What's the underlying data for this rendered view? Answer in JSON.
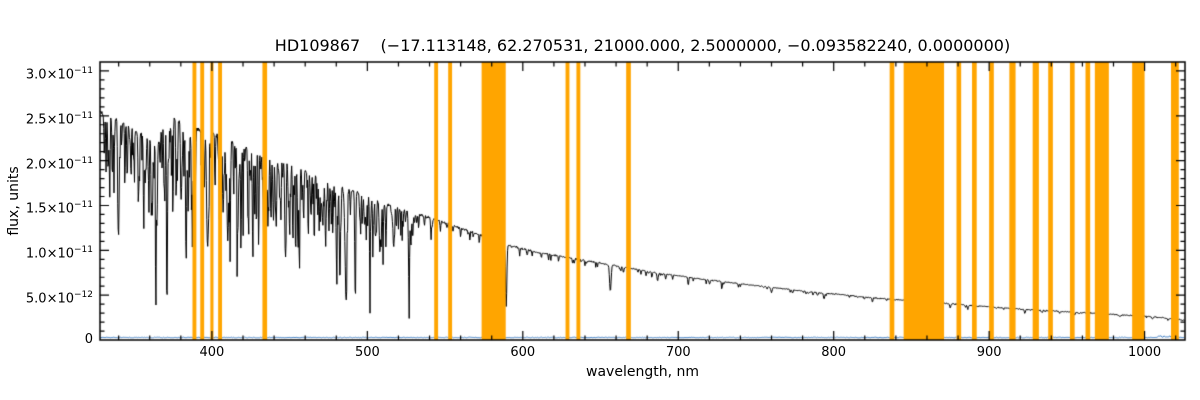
{
  "title": "HD109867    (−17.113148, 62.270531, 21000.000, 2.5000000, −0.093582240, 0.0000000)",
  "chart_data": {
    "type": "line",
    "title": "HD109867    (−17.113148, 62.270531, 21000.000, 2.5000000, −0.093582240, 0.0000000)",
    "xlabel": "wavelength, nm",
    "ylabel": "flux, units",
    "xlim": [
      328,
      1026
    ],
    "ylim_e11": [
      0,
      3.1
    ],
    "x_major_ticks": [
      400,
      500,
      600,
      700,
      800,
      900,
      1000
    ],
    "x_minor_step": 20,
    "y_major_ticks": [
      {
        "value_e11": 0.0,
        "label": "0"
      },
      {
        "value_e11": 0.5,
        "label": "5.0×10^−12"
      },
      {
        "value_e11": 1.0,
        "label": "1.0×10^−11"
      },
      {
        "value_e11": 1.5,
        "label": "1.5×10^−11"
      },
      {
        "value_e11": 2.0,
        "label": "2.0×10^−11"
      },
      {
        "value_e11": 2.5,
        "label": "2.5×10^−11"
      },
      {
        "value_e11": 3.0,
        "label": "3.0×10^−11"
      }
    ],
    "y_minor_step_e11": 0.1,
    "colors": {
      "spectrum": "#000000",
      "masks": "#FFA500",
      "error_line": "#4a86c8",
      "frame": "#000000",
      "background": "#ffffff"
    },
    "masked_bands_nm": [
      [
        387.5,
        390
      ],
      [
        392.5,
        395
      ],
      [
        399,
        401
      ],
      [
        404,
        406.5
      ],
      [
        432.5,
        435.5
      ],
      [
        543,
        545.5
      ],
      [
        552,
        554.5
      ],
      [
        573.5,
        589
      ],
      [
        627.5,
        630
      ],
      [
        634.5,
        637
      ],
      [
        666.5,
        669.5
      ],
      [
        836,
        839
      ],
      [
        845,
        871
      ],
      [
        879,
        882
      ],
      [
        889,
        892
      ],
      [
        900,
        903
      ],
      [
        913,
        917
      ],
      [
        928,
        932
      ],
      [
        938,
        941
      ],
      [
        952,
        955
      ],
      [
        962,
        965
      ],
      [
        968,
        977
      ],
      [
        992,
        1000
      ],
      [
        1017,
        1022
      ]
    ],
    "continuum_e11": [
      [
        328,
        2.56
      ],
      [
        336,
        2.49
      ],
      [
        344,
        2.42
      ],
      [
        352,
        2.33
      ],
      [
        358,
        2.26
      ],
      [
        363,
        2.2
      ],
      [
        366,
        2.25
      ],
      [
        369,
        2.47
      ],
      [
        372,
        2.52
      ],
      [
        376,
        2.47
      ],
      [
        382,
        2.42
      ],
      [
        390,
        2.37
      ],
      [
        400,
        2.31
      ],
      [
        410,
        2.24
      ],
      [
        420,
        2.17
      ],
      [
        430,
        2.1
      ],
      [
        440,
        2.03
      ],
      [
        450,
        1.96
      ],
      [
        460,
        1.89
      ],
      [
        470,
        1.82
      ],
      [
        480,
        1.74
      ],
      [
        490,
        1.67
      ],
      [
        500,
        1.6
      ],
      [
        510,
        1.53
      ],
      [
        520,
        1.47
      ],
      [
        530,
        1.42
      ],
      [
        540,
        1.37
      ],
      [
        550,
        1.31
      ],
      [
        560,
        1.25
      ],
      [
        570,
        1.19
      ],
      [
        580,
        1.13
      ],
      [
        590,
        1.07
      ],
      [
        600,
        1.02
      ],
      [
        610,
        0.98
      ],
      [
        620,
        0.95
      ],
      [
        630,
        0.92
      ],
      [
        640,
        0.89
      ],
      [
        650,
        0.86
      ],
      [
        660,
        0.83
      ],
      [
        670,
        0.8
      ],
      [
        680,
        0.77
      ],
      [
        690,
        0.74
      ],
      [
        700,
        0.72
      ],
      [
        715,
        0.68
      ],
      [
        730,
        0.65
      ],
      [
        745,
        0.62
      ],
      [
        760,
        0.59
      ],
      [
        775,
        0.56
      ],
      [
        790,
        0.53
      ],
      [
        805,
        0.51
      ],
      [
        820,
        0.48
      ],
      [
        835,
        0.46
      ],
      [
        850,
        0.44
      ],
      [
        865,
        0.42
      ],
      [
        880,
        0.4
      ],
      [
        895,
        0.38
      ],
      [
        910,
        0.36
      ],
      [
        925,
        0.34
      ],
      [
        940,
        0.33
      ],
      [
        955,
        0.31
      ],
      [
        970,
        0.3
      ],
      [
        985,
        0.28
      ],
      [
        1000,
        0.27
      ],
      [
        1012,
        0.25
      ],
      [
        1026,
        0.22
      ]
    ],
    "absorption_lines": [
      [
        336,
        0.2,
        0.3
      ],
      [
        340,
        0.25,
        0.3
      ],
      [
        344,
        0.3,
        0.3
      ],
      [
        348,
        0.22,
        0.3
      ],
      [
        353,
        0.28,
        0.3
      ],
      [
        356,
        0.3,
        0.3
      ],
      [
        361,
        0.35,
        0.35
      ],
      [
        364,
        0.3,
        0.3
      ],
      [
        368,
        0.22,
        0.3
      ],
      [
        371,
        0.18,
        0.25
      ],
      [
        374,
        0.3,
        0.3
      ],
      [
        377,
        0.28,
        0.3
      ],
      [
        380,
        0.33,
        0.35
      ],
      [
        383.5,
        0.45,
        0.6
      ],
      [
        388.9,
        0.5,
        0.6
      ],
      [
        394,
        0.25,
        0.3
      ],
      [
        397,
        0.5,
        0.7
      ],
      [
        402,
        0.28,
        0.3
      ],
      [
        407,
        0.3,
        0.3
      ],
      [
        410.2,
        0.5,
        0.8
      ],
      [
        414,
        0.28,
        0.3
      ],
      [
        417,
        0.25,
        0.3
      ],
      [
        420,
        0.2,
        0.3
      ],
      [
        423,
        0.18,
        0.25
      ],
      [
        426,
        0.2,
        0.3
      ],
      [
        430,
        0.3,
        0.35
      ],
      [
        434,
        0.55,
        0.9
      ],
      [
        438,
        0.35,
        0.4
      ],
      [
        441.5,
        0.3,
        0.35
      ],
      [
        444,
        0.25,
        0.3
      ],
      [
        447.1,
        0.45,
        0.45
      ],
      [
        450,
        0.2,
        0.3
      ],
      [
        453,
        0.18,
        0.3
      ],
      [
        455.5,
        0.25,
        0.3
      ],
      [
        458,
        0.2,
        0.3
      ],
      [
        462,
        0.18,
        0.3
      ],
      [
        465,
        0.2,
        0.3
      ],
      [
        468,
        0.25,
        0.3
      ],
      [
        471.3,
        0.3,
        0.35
      ],
      [
        474,
        0.15,
        0.25
      ],
      [
        478,
        0.2,
        0.3
      ],
      [
        481,
        0.25,
        0.3
      ],
      [
        486.1,
        0.55,
        0.9
      ],
      [
        492.2,
        0.3,
        0.35
      ],
      [
        495,
        0.15,
        0.25
      ],
      [
        501.6,
        0.3,
        0.35
      ],
      [
        505,
        0.12,
        0.25
      ],
      [
        508,
        0.15,
        0.25
      ],
      [
        512,
        0.12,
        0.25
      ],
      [
        516.7,
        0.2,
        0.3
      ],
      [
        520,
        0.15,
        0.25
      ],
      [
        523,
        0.12,
        0.25
      ],
      [
        527,
        0.18,
        0.3
      ],
      [
        533,
        0.12,
        0.3
      ],
      [
        541,
        0.1,
        0.3
      ],
      [
        547,
        0.08,
        0.3
      ],
      [
        553,
        0.08,
        0.3
      ],
      [
        560,
        0.07,
        0.3
      ],
      [
        566,
        0.08,
        0.3
      ],
      [
        572,
        0.07,
        0.3
      ],
      [
        587.6,
        0.35,
        0.4
      ],
      [
        589.3,
        0.65,
        0.6
      ],
      [
        598,
        0.08,
        0.3
      ],
      [
        606,
        0.06,
        0.3
      ],
      [
        612,
        0.06,
        0.3
      ],
      [
        618,
        0.07,
        0.3
      ],
      [
        623,
        0.08,
        0.3
      ],
      [
        640,
        0.06,
        0.3
      ],
      [
        648,
        0.06,
        0.3
      ],
      [
        656.3,
        0.35,
        0.7
      ],
      [
        663,
        0.06,
        0.3
      ],
      [
        676,
        0.06,
        0.3
      ],
      [
        686.7,
        0.12,
        0.5
      ],
      [
        706.5,
        0.12,
        0.4
      ],
      [
        718,
        0.06,
        0.3
      ],
      [
        728,
        0.08,
        0.35
      ],
      [
        740,
        0.05,
        0.3
      ],
      [
        760,
        0.1,
        0.6
      ],
      [
        772,
        0.06,
        0.3
      ],
      [
        795,
        0.05,
        0.3
      ],
      [
        810,
        0.05,
        0.3
      ],
      [
        825,
        0.06,
        0.3
      ],
      [
        838,
        0.06,
        0.3
      ],
      [
        846,
        0.08,
        0.3
      ],
      [
        860,
        0.1,
        0.4
      ],
      [
        875,
        0.12,
        0.5
      ],
      [
        886.3,
        0.12,
        0.5
      ],
      [
        901.5,
        0.12,
        0.5
      ],
      [
        923,
        0.12,
        0.5
      ],
      [
        955,
        0.1,
        0.5
      ],
      [
        1005,
        0.1,
        0.6
      ],
      [
        1015,
        0.08,
        0.4
      ]
    ],
    "error_level_e11": 0.028,
    "noise": {
      "seed": 42,
      "amp_blue_e11": 0.042,
      "amp_red_e11": 0.01
    }
  }
}
